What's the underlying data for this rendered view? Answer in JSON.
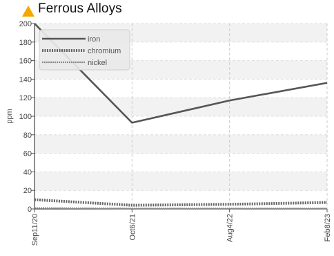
{
  "header": {
    "title": "Ferrous Alloys",
    "icon": "warning-triangle-icon",
    "icon_color": "#f5a700"
  },
  "chart_data": {
    "type": "line",
    "title": "Ferrous Alloys",
    "xlabel": "",
    "ylabel": "ppm",
    "ylim": [
      0,
      200
    ],
    "yticks": [
      0,
      20,
      40,
      60,
      80,
      100,
      120,
      140,
      160,
      180,
      200
    ],
    "categories": [
      "Sep11/20",
      "Oct6/21",
      "Aug4/22",
      "Feb8/23"
    ],
    "grid": true,
    "legend_position": "top-left",
    "series": [
      {
        "name": "iron",
        "values": [
          200,
          93,
          117,
          136
        ],
        "color": "#555555",
        "style": "solid"
      },
      {
        "name": "chromium",
        "values": [
          10,
          4,
          5,
          7
        ],
        "color": "#666666",
        "style": "dotted-thick"
      },
      {
        "name": "nickel",
        "values": [
          1,
          0.5,
          0.5,
          0.5
        ],
        "color": "#888888",
        "style": "dotted-thin"
      }
    ]
  }
}
